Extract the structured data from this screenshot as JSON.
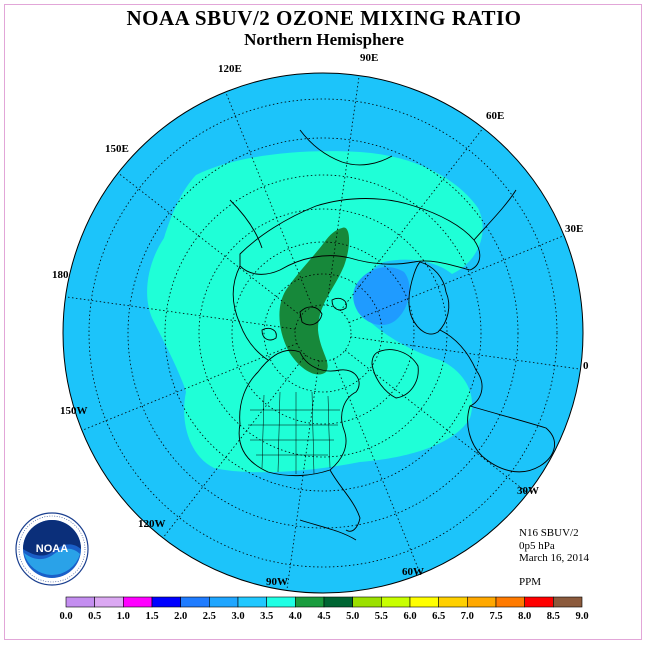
{
  "title": "NOAA SBUV/2 OZONE MIXING RATIO",
  "subtitle": "Northern Hemisphere",
  "info": {
    "satellite": "N16 SBUV/2",
    "level": "0p5 hPa",
    "date": "March 16, 2014",
    "units": "PPM"
  },
  "longitude_labels": {
    "lon_90e": "90E",
    "lon_60e": "60E",
    "lon_30e": "30E",
    "lon_0": "0",
    "lon_30w": "30W",
    "lon_60w": "60W",
    "lon_90w": "90W",
    "lon_120w": "120W",
    "lon_150w": "150W",
    "lon_180": "180",
    "lon_150e": "150E",
    "lon_120e": "120E"
  },
  "logo_text": "NOAA",
  "color_scale": {
    "ticks": [
      "0.0",
      "0.5",
      "1.0",
      "1.5",
      "2.0",
      "2.5",
      "3.0",
      "3.5",
      "4.0",
      "4.5",
      "5.0",
      "5.5",
      "6.0",
      "6.5",
      "7.0",
      "7.5",
      "8.0",
      "8.5",
      "9.0"
    ],
    "colors": [
      "#c48ef0",
      "#dba8f2",
      "#ff00ff",
      "#0000ff",
      "#1f7cff",
      "#1fa6ff",
      "#21c8ff",
      "#1fffe4",
      "#1a9c3e",
      "#006633",
      "#9be000",
      "#c8ff00",
      "#ffff00",
      "#ffd000",
      "#ffa800",
      "#ff7a00",
      "#ff0000",
      "#8b5a3c"
    ]
  },
  "map_colors": {
    "background_region": "#1cc4fa",
    "mid_region": "#1fffd7",
    "max_region": "#17883a",
    "min_region": "#1f9bff"
  }
}
